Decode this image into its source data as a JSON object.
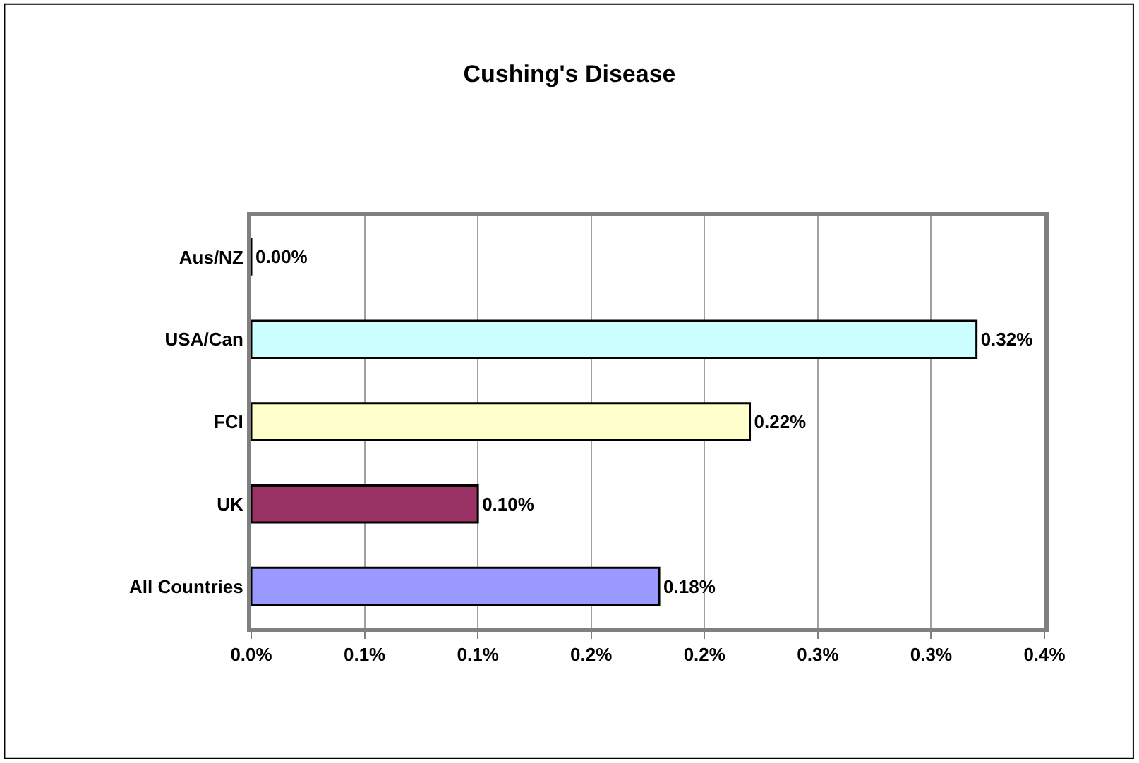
{
  "chart_data": {
    "type": "bar",
    "orientation": "horizontal",
    "title": "Cushing's Disease",
    "categories": [
      "Aus/NZ",
      "USA/Can",
      "FCI",
      "UK",
      "All Countries"
    ],
    "values": [
      0,
      0.32,
      0.22,
      0.1,
      0.18
    ],
    "colors": [
      "#000000",
      "#ccffff",
      "#ffffcc",
      "#993366",
      "#9999ff"
    ],
    "value_labels": [
      "0.00%",
      "0.32%",
      "0.22%",
      "0.10%",
      "0.18%"
    ],
    "xlim": [
      0,
      0.35
    ],
    "xticks": [
      {
        "value": 0,
        "label": "0.0%"
      },
      {
        "value": 0.05,
        "label": "0.1%"
      },
      {
        "value": 0.1,
        "label": "0.1%"
      },
      {
        "value": 0.15,
        "label": "0.2%"
      },
      {
        "value": 0.2,
        "label": "0.2%"
      },
      {
        "value": 0.25,
        "label": "0.3%"
      },
      {
        "value": 0.3,
        "label": "0.3%"
      },
      {
        "value": 0.35,
        "label": "0.4%"
      }
    ],
    "grid": "x"
  }
}
